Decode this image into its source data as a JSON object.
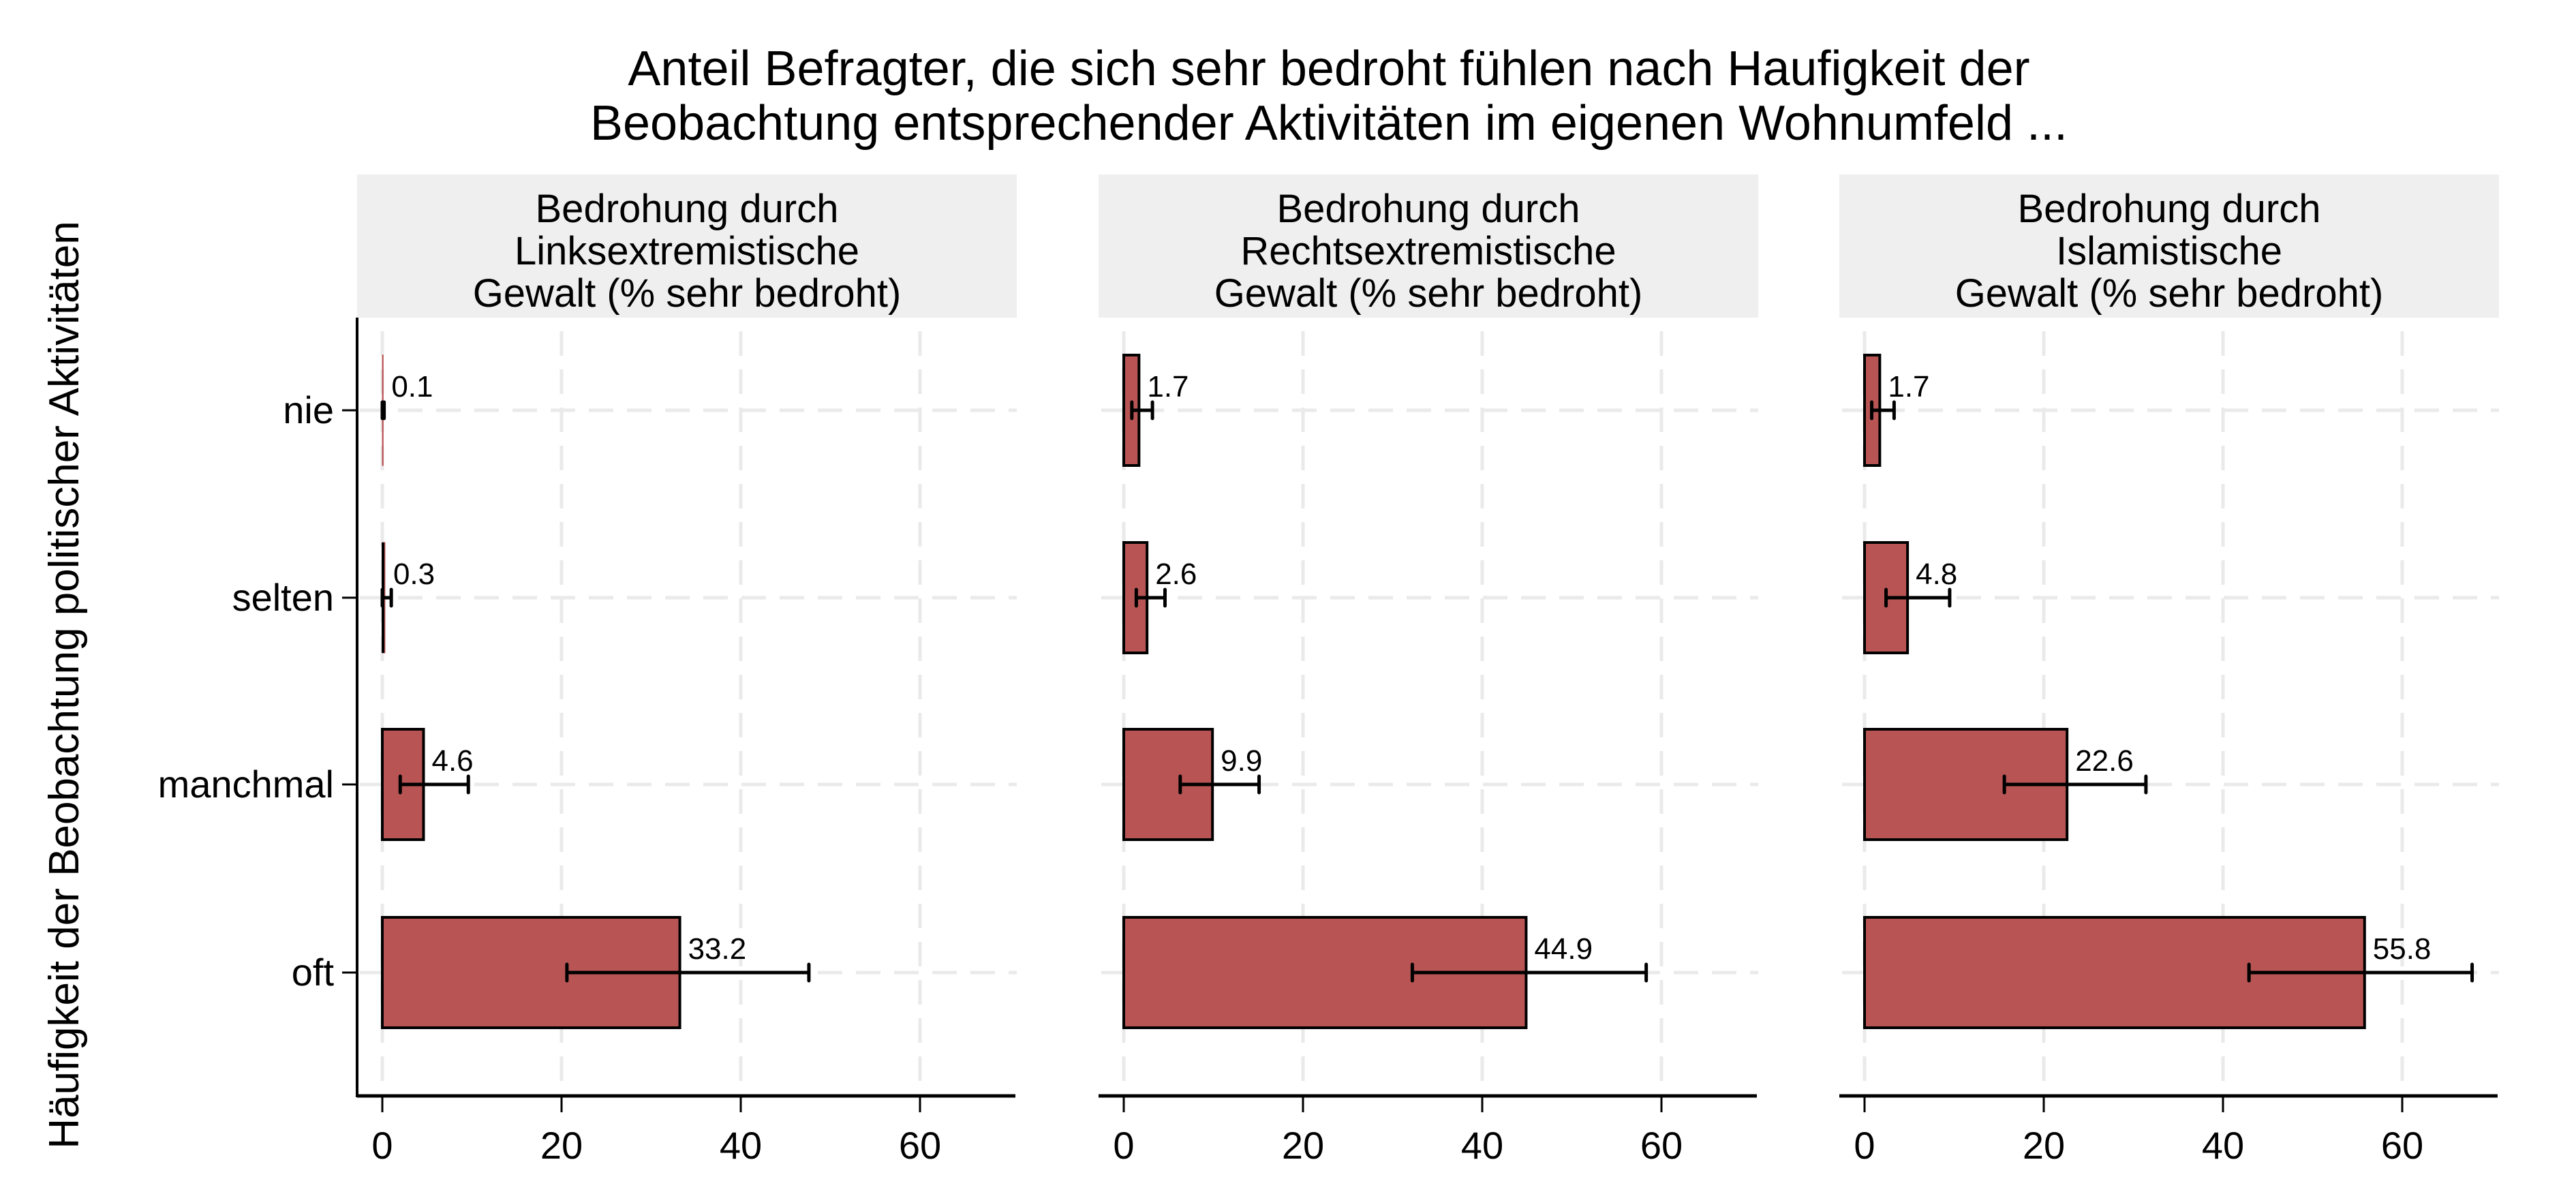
{
  "chart_data": {
    "type": "bar",
    "orientation": "horizontal",
    "title_lines": [
      "Anteil Befragter, die sich sehr bedroht fühlen nach Haufigkeit der",
      "Beobachtung entsprechender Aktivitäten im eigenen Wohnumfeld ..."
    ],
    "ylabel": "Häufigkeit der Beobachtung politischer Aktivitäten",
    "xlabel": "",
    "categories": [
      "nie",
      "selten",
      "manchmal",
      "oft"
    ],
    "xlim": [
      0,
      70
    ],
    "xticks": [
      0,
      20,
      40,
      60
    ],
    "grid": true,
    "bar_color": "#b85554",
    "strip_color": "#efefef",
    "panels": [
      {
        "strip_lines": [
          "Bedrohung durch",
          "Linksextremistische",
          "Gewalt (% sehr bedroht)"
        ],
        "values": [
          0.1,
          0.3,
          4.6,
          33.2
        ],
        "value_labels": [
          "0.1",
          "0.3",
          "4.6",
          "33.2"
        ],
        "ci_low": [
          0.0,
          0.0,
          2.0,
          20.6
        ],
        "ci_high": [
          0.2,
          1.0,
          9.6,
          47.6
        ]
      },
      {
        "strip_lines": [
          "Bedrohung durch",
          "Rechtsextremistische",
          "Gewalt (% sehr bedroht)"
        ],
        "values": [
          1.7,
          2.6,
          9.9,
          44.9
        ],
        "value_labels": [
          "1.7",
          "2.6",
          "9.9",
          "44.9"
        ],
        "ci_low": [
          0.9,
          1.4,
          6.3,
          32.2
        ],
        "ci_high": [
          3.2,
          4.6,
          15.1,
          58.3
        ]
      },
      {
        "strip_lines": [
          "Bedrohung durch",
          "Islamistische",
          "Gewalt (% sehr bedroht)"
        ],
        "values": [
          1.7,
          4.8,
          22.6,
          55.8
        ],
        "value_labels": [
          "1.7",
          "4.8",
          "22.6",
          "55.8"
        ],
        "ci_low": [
          0.8,
          2.4,
          15.6,
          42.9
        ],
        "ci_high": [
          3.3,
          9.5,
          31.4,
          67.8
        ]
      }
    ]
  }
}
